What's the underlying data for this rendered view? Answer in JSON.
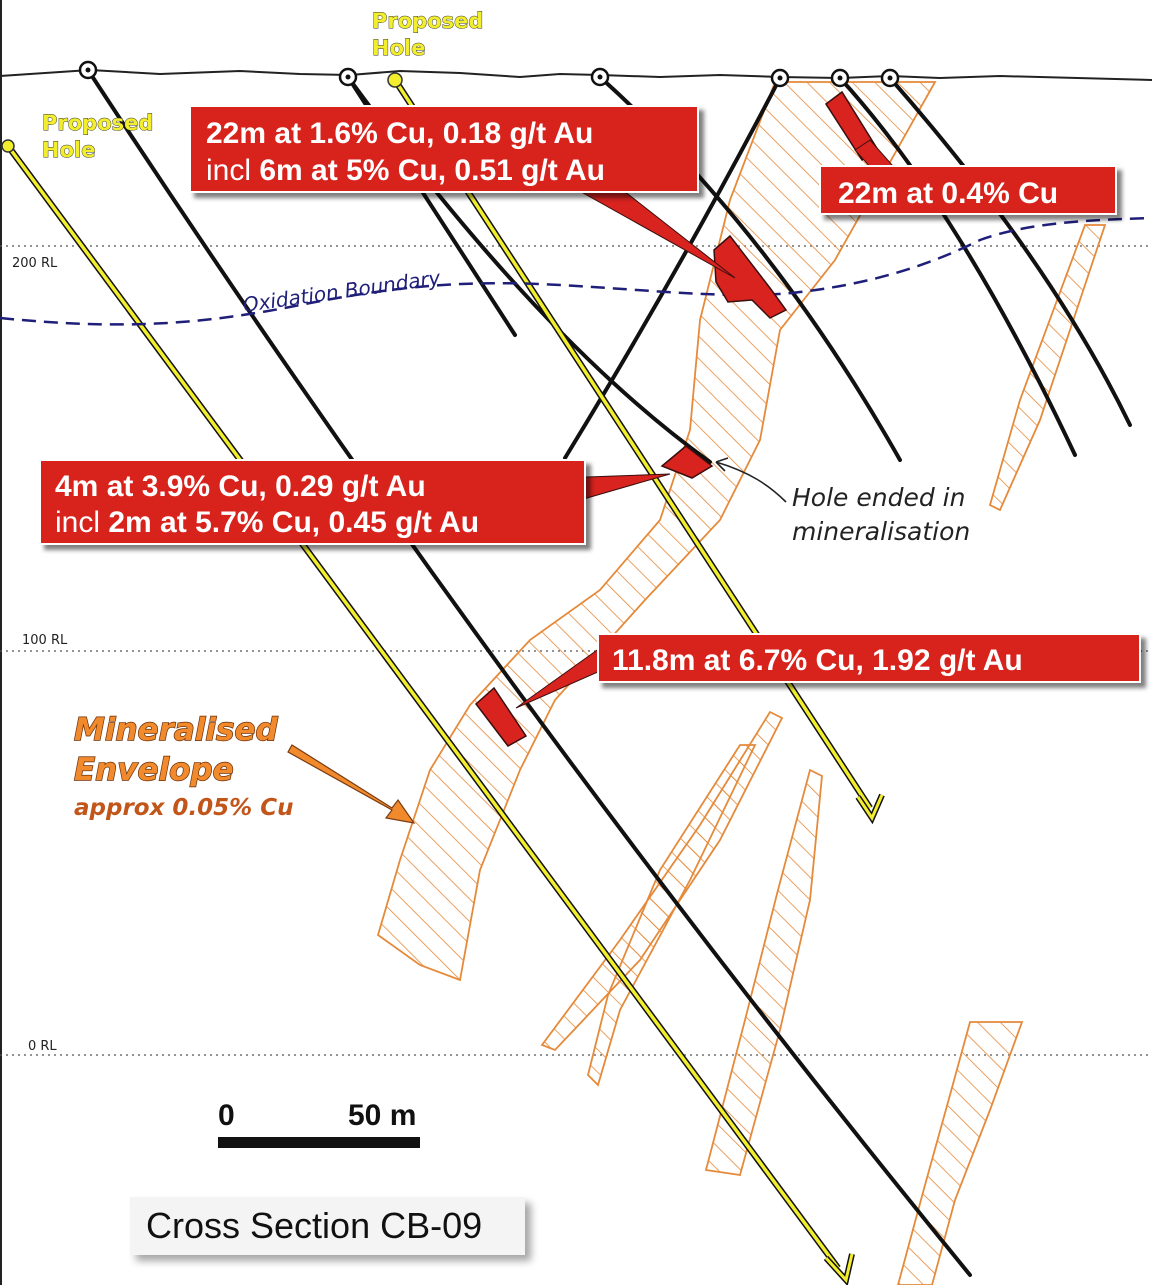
{
  "title": "Cross Section CB-09",
  "rl_labels": {
    "rl200": "200 RL",
    "rl100": "100 RL",
    "rl0": "0 RL"
  },
  "proposed_hole_labels": [
    {
      "line1": "Proposed",
      "line2": "Hole"
    },
    {
      "line1": "Proposed",
      "line2": "Hole"
    }
  ],
  "oxidation_boundary": "Oxidation Boundary",
  "callouts": [
    {
      "line1": "22m at  1.6% Cu, 0.18 g/t Au",
      "line2_prefix": "incl ",
      "line2_bold": "6m at 5% Cu, 0.51 g/t Au"
    },
    {
      "line1": "22m at 0.4% Cu"
    },
    {
      "line1": "4m at  3.9% Cu, 0.29 g/t Au",
      "line2_prefix": "incl ",
      "line2_bold": "2m at 5.7% Cu, 0.45 g/t Au"
    },
    {
      "line1": "11.8m at  6.7% Cu, 1.92 g/t Au"
    }
  ],
  "hole_note": {
    "line1": "Hole ended in",
    "line2": "mineralisation"
  },
  "envelope": {
    "line1": "Mineralised",
    "line2": "Envelope",
    "line3": "approx 0.05% Cu"
  },
  "scale_bar": {
    "start": "0",
    "end": "50 m"
  },
  "colors": {
    "intercept_red": "#d8231f",
    "hatch_orange": "#e58a3a",
    "proposed_yellow": "#f2ee2e",
    "oxidation_navy": "#1f1f7a"
  }
}
